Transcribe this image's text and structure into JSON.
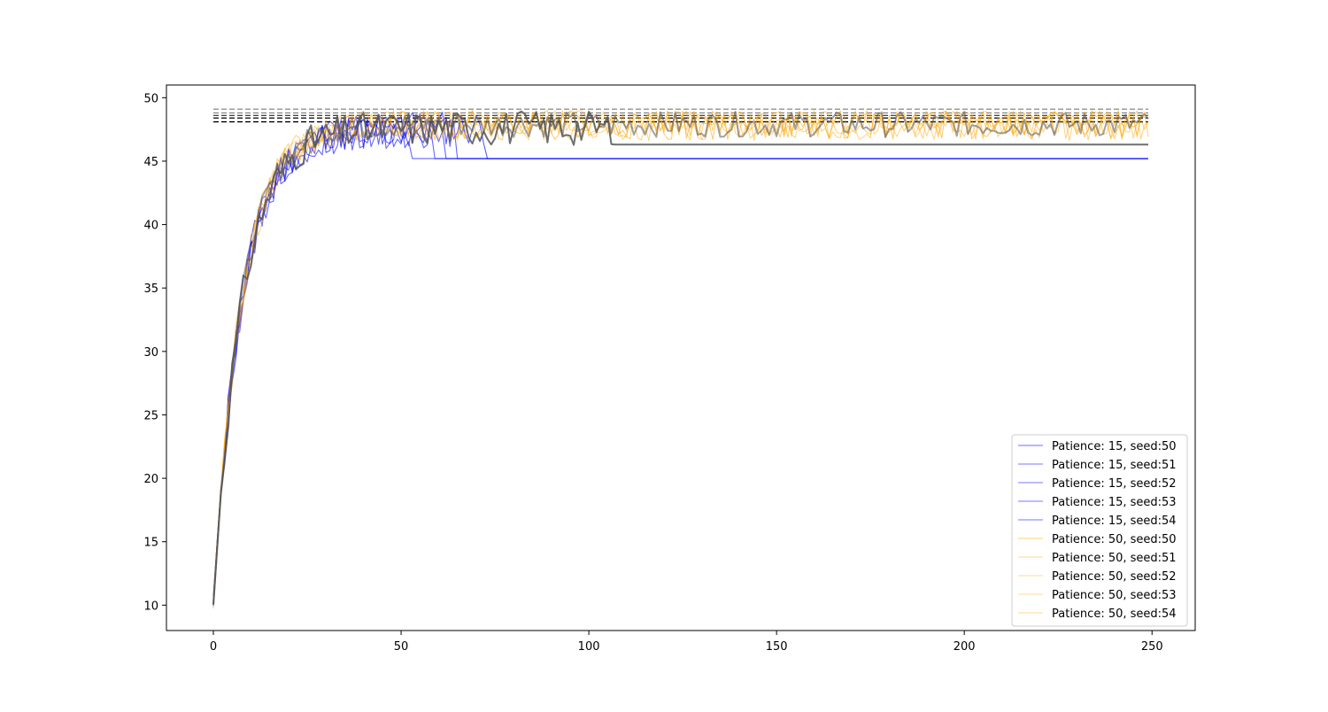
{
  "chart_data": {
    "type": "line",
    "title": "",
    "xlabel": "",
    "ylabel": "",
    "xlim": [
      -12.5,
      261.5
    ],
    "ylim": [
      8,
      51
    ],
    "xticks": [
      0,
      50,
      100,
      150,
      200,
      250
    ],
    "yticks": [
      10,
      15,
      20,
      25,
      30,
      35,
      40,
      45,
      50
    ],
    "grid": false,
    "legend_position": "lower right",
    "x_max": 249,
    "series": [
      {
        "name": "Patience: 15, seed:50",
        "color": "#0000ff",
        "alpha": 0.65,
        "width": 1.1,
        "start": 10.5,
        "plateau": 47.8,
        "stop_epoch": 72,
        "final": 45.2,
        "noise": 1.4,
        "seed": 11
      },
      {
        "name": "Patience: 15, seed:51",
        "color": "#0000ff",
        "alpha": 0.6,
        "width": 1.1,
        "start": 10.2,
        "plateau": 47.5,
        "stop_epoch": 64,
        "final": 45.2,
        "noise": 1.3,
        "seed": 12
      },
      {
        "name": "Patience: 15, seed:52",
        "color": "#0000ff",
        "alpha": 0.6,
        "width": 1.1,
        "start": 10.0,
        "plateau": 47.6,
        "stop_epoch": 58,
        "final": 45.2,
        "noise": 1.3,
        "seed": 13
      },
      {
        "name": "Patience: 15, seed:53",
        "color": "#0000ff",
        "alpha": 0.6,
        "width": 1.1,
        "start": 10.3,
        "plateau": 47.4,
        "stop_epoch": 52,
        "final": 45.2,
        "noise": 1.2,
        "seed": 14
      },
      {
        "name": "Patience: 15, seed:54",
        "color": "#0000ff",
        "alpha": 0.6,
        "width": 1.1,
        "start": 10.1,
        "plateau": 47.7,
        "stop_epoch": 61,
        "final": 45.2,
        "noise": 1.3,
        "seed": 15
      },
      {
        "name": "Patience: 50, seed:50",
        "color": "#ffa500",
        "alpha": 0.6,
        "width": 1.0,
        "start": 10.4,
        "plateau": 48.0,
        "stop_epoch": 249,
        "final": 47.5,
        "noise": 1.2,
        "seed": 21
      },
      {
        "name": "Patience: 50, seed:51",
        "color": "#ffa500",
        "alpha": 0.5,
        "width": 1.0,
        "start": 10.0,
        "plateau": 48.1,
        "stop_epoch": 249,
        "final": 47.4,
        "noise": 1.2,
        "seed": 22
      },
      {
        "name": "Patience: 50, seed:52",
        "color": "#ffa500",
        "alpha": 0.5,
        "width": 1.0,
        "start": 10.2,
        "plateau": 48.0,
        "stop_epoch": 249,
        "final": 47.6,
        "noise": 1.2,
        "seed": 23
      },
      {
        "name": "Patience: 50, seed:53",
        "color": "#ffa500",
        "alpha": 0.5,
        "width": 1.0,
        "start": 10.1,
        "plateau": 48.2,
        "stop_epoch": 249,
        "final": 47.5,
        "noise": 1.1,
        "seed": 24
      },
      {
        "name": "Patience: 50, seed:54",
        "color": "#ffa500",
        "alpha": 0.5,
        "width": 1.0,
        "start": 10.3,
        "plateau": 47.9,
        "stop_epoch": 249,
        "final": 47.4,
        "noise": 1.2,
        "seed": 25
      }
    ],
    "unlabeled_series": [
      {
        "color": "#555555",
        "alpha": 0.85,
        "width": 2.0,
        "start": 10.0,
        "plateau": 47.8,
        "stop_epoch": 106,
        "final": 46.3,
        "noise": 1.4,
        "seed": 31
      },
      {
        "color": "#555555",
        "alpha": 0.55,
        "width": 2.0,
        "start": 10.1,
        "plateau": 48.0,
        "stop_epoch": 249,
        "final": 47.6,
        "noise": 1.0,
        "seed": 32
      }
    ],
    "reference_lines": [
      {
        "y": 49.1,
        "color": "#888888",
        "dash": "6,3"
      },
      {
        "y": 48.8,
        "color": "#888888",
        "dash": "6,3"
      },
      {
        "y": 48.6,
        "color": "#444444",
        "dash": "6,3"
      },
      {
        "y": 48.4,
        "color": "#000000",
        "dash": "6,3"
      },
      {
        "y": 48.1,
        "color": "#000000",
        "dash": "6,3"
      }
    ]
  }
}
